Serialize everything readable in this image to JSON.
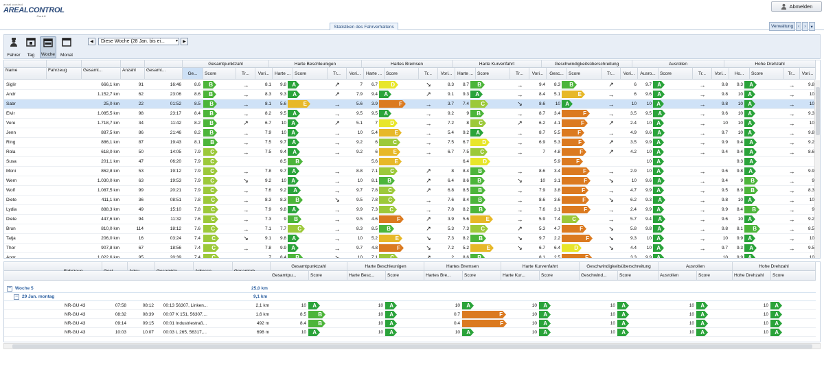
{
  "brand": {
    "name": "AREALCONTROL",
    "small_top": "areal control",
    "small_bottom": "GmbH"
  },
  "header": {
    "logout_label": "Abmelden",
    "stats_tab": "Statistiken des Fahrverhaltens",
    "admin_label": "Verwaltung"
  },
  "toolbar": {
    "buttons": [
      "Fahrer",
      "Tag",
      "Woche",
      "Monat"
    ],
    "period": "Diese Woche (28 Jan. bis ei..."
  },
  "groups": [
    "Gesamtpunktzahl",
    "Harte Beschleunigen",
    "Hartes Bremsen",
    "Harte Kurvenfahrt",
    "Geschwindigkeitsüberschreitung",
    "Ausrollen",
    "Hohe Drehzahl"
  ],
  "fixed_cols": [
    "Name",
    "Fahrzeug",
    "Gesamt...",
    "Anzahl",
    "Gesamt..."
  ],
  "sub_cols": {
    "g0": [
      "Ge...",
      "Score"
    ],
    "g1": [
      "Tr...",
      "Vori...",
      "Harte ...",
      "Score"
    ],
    "g2": [
      "Tr...",
      "Vori...",
      "Harte ...",
      "Score"
    ],
    "g3": [
      "Tr...",
      "Vori...",
      "Harte ...",
      "Score"
    ],
    "g4": [
      "Tr...",
      "Vori...",
      "Gesc...",
      "Score"
    ],
    "g5": [
      "Tr...",
      "Vori...",
      "Ausro...",
      "Score"
    ],
    "g6": [
      "Tr...",
      "Vori...",
      "Ho...",
      "Score"
    ],
    "tail": [
      "Tr...",
      "Vori..."
    ]
  },
  "colors": {
    "A": "#2aa33a",
    "B": "#4cb53a",
    "C": "#9cc93a",
    "D": "#e8e62a",
    "E": "#e7b828",
    "F": "#db7a20"
  },
  "rows": [
    {
      "name": "Siglir",
      "km": "666,1 km",
      "n": "91",
      "t": "16:46",
      "v": [
        [
          "8.6",
          "B"
        ],
        [
          "→",
          "8.1",
          "9.8",
          "A"
        ],
        [
          "↗",
          "7",
          "6.7",
          "D"
        ],
        [
          "↘",
          "8.3",
          "8.7",
          "B"
        ],
        [
          "→",
          "9.4",
          "8.3",
          "B"
        ],
        [
          "↗",
          "6",
          "9.7",
          "A"
        ],
        [
          "→",
          "9.8",
          "9.3",
          "A"
        ],
        [
          "→",
          "9.8"
        ]
      ]
    },
    {
      "name": "Andr",
      "km": "1.152,7 km",
      "n": "62",
      "t": "23:06",
      "v": [
        [
          "8.6",
          "B"
        ],
        [
          "→",
          "8.3",
          "9.3",
          "A"
        ],
        [
          "↗",
          "7.9",
          "9.4",
          "A"
        ],
        [
          "↗",
          "9.1",
          "9.3",
          "A"
        ],
        [
          "→",
          "8.4",
          "5.1",
          "E"
        ],
        [
          "→",
          "6",
          "9.6",
          "A"
        ],
        [
          "→",
          "9.8",
          "10",
          "A"
        ],
        [
          "→",
          "10"
        ]
      ]
    },
    {
      "name": "Sabr",
      "km": "25,0 km",
      "n": "22",
      "t": "01:52",
      "sel": true,
      "v": [
        [
          "8.5",
          "B"
        ],
        [
          "→",
          "8.1",
          "5.6",
          "E"
        ],
        [
          "→",
          "5.6",
          "3.9",
          "F"
        ],
        [
          "→",
          "3.7",
          "7.4",
          "C"
        ],
        [
          "↘",
          "8.6",
          "10",
          "A"
        ],
        [
          "→",
          "10",
          "10",
          "A"
        ],
        [
          "→",
          "9.8",
          "10",
          "A"
        ],
        [
          "→",
          "10"
        ]
      ]
    },
    {
      "name": "Elvir",
      "km": "1.085,5 km",
      "n": "98",
      "t": "23:17",
      "v": [
        [
          "8.4",
          "B"
        ],
        [
          "→",
          "8.2",
          "9.5",
          "A"
        ],
        [
          "→",
          "9.5",
          "9.5",
          "A"
        ],
        [
          "→",
          "9.2",
          "9",
          "B"
        ],
        [
          "→",
          "8.7",
          "3.4",
          "F"
        ],
        [
          "→",
          "3.5",
          "9.5",
          "A"
        ],
        [
          "→",
          "9.6",
          "10",
          "A"
        ],
        [
          "→",
          "9.3"
        ]
      ]
    },
    {
      "name": "Vere",
      "km": "1.718,7 km",
      "n": "34",
      "t": "11:42",
      "v": [
        [
          "8.2",
          "B"
        ],
        [
          "↗",
          "6.7",
          "10",
          "A"
        ],
        [
          "↗",
          "5.1",
          "7",
          "D"
        ],
        [
          "→",
          "7.2",
          "8",
          "C"
        ],
        [
          "↗",
          "6.2",
          "4.1",
          "F"
        ],
        [
          "↗",
          "2.4",
          "10",
          "A"
        ],
        [
          "→",
          "10",
          "10",
          "A"
        ],
        [
          "→",
          "10"
        ]
      ]
    },
    {
      "name": "Jenn",
      "km": "887,5 km",
      "n": "86",
      "t": "21:46",
      "v": [
        [
          "8.2",
          "B"
        ],
        [
          "→",
          "7.9",
          "10",
          "A"
        ],
        [
          "→",
          "10",
          "5.4",
          "E"
        ],
        [
          "→",
          "5.4",
          "9.2",
          "A"
        ],
        [
          "→",
          "8.7",
          "5.5",
          "F"
        ],
        [
          "→",
          "4.9",
          "9.6",
          "A"
        ],
        [
          "→",
          "9.7",
          "10",
          "A"
        ],
        [
          "→",
          "9.8"
        ]
      ]
    },
    {
      "name": "Ring",
      "km": "886,1 km",
      "n": "87",
      "t": "19:43",
      "v": [
        [
          "8.1",
          "B"
        ],
        [
          "→",
          "7.5",
          "9.7",
          "A"
        ],
        [
          "→",
          "9.2",
          "6",
          "C"
        ],
        [
          "→",
          "7.5",
          "6.7",
          "D"
        ],
        [
          "→",
          "6.9",
          "5.3",
          "F"
        ],
        [
          "↗",
          "3.5",
          "9.9",
          "A"
        ],
        [
          "→",
          "9.9",
          "9.4",
          "A"
        ],
        [
          "→",
          "9.2"
        ]
      ]
    },
    {
      "name": "Rola",
      "km": "618,0 km",
      "n": "50",
      "t": "14:05",
      "v": [
        [
          "7.9",
          "C"
        ],
        [
          "→",
          "7.5",
          "9.4",
          "A"
        ],
        [
          "→",
          "9.2",
          "6",
          "E"
        ],
        [
          "→",
          "6.7",
          "7.5",
          "C"
        ],
        [
          "→",
          "7",
          "4.8",
          "F"
        ],
        [
          "↗",
          "4.2",
          "10",
          "A"
        ],
        [
          "→",
          "9.4",
          "9.4",
          "A"
        ],
        [
          "→",
          "8.6"
        ]
      ]
    },
    {
      "name": "Susa",
      "km": "201,1 km",
      "n": "47",
      "t": "06:20",
      "v": [
        [
          "7.9",
          "C"
        ],
        [
          "",
          "",
          "8.5",
          "B"
        ],
        [
          "",
          "",
          "5.6",
          "E"
        ],
        [
          "",
          "",
          "6.4",
          "D"
        ],
        [
          "",
          "",
          "5.9",
          "F"
        ],
        [
          "",
          "",
          "10",
          "A"
        ],
        [
          "",
          "",
          "9.3",
          "A"
        ],
        [
          "",
          ""
        ]
      ]
    },
    {
      "name": "Moni",
      "km": "862,8 km",
      "n": "53",
      "t": "19:12",
      "v": [
        [
          "7.9",
          "C"
        ],
        [
          "→",
          "7.8",
          "9.7",
          "A"
        ],
        [
          "→",
          "8.8",
          "7.1",
          "C"
        ],
        [
          "↗",
          "8",
          "8.4",
          "B"
        ],
        [
          "→",
          "8.6",
          "3.4",
          "F"
        ],
        [
          "→",
          "2.9",
          "10",
          "A"
        ],
        [
          "→",
          "9.6",
          "9.8",
          "A"
        ],
        [
          "→",
          "9.9"
        ]
      ]
    },
    {
      "name": "Wern",
      "km": "1.030,0 km",
      "n": "63",
      "t": "19:53",
      "v": [
        [
          "7.9",
          "C"
        ],
        [
          "↘",
          "9.2",
          "10",
          "A"
        ],
        [
          "→",
          "10",
          "8.1",
          "B"
        ],
        [
          "↗",
          "6.4",
          "8.6",
          "B"
        ],
        [
          "↘",
          "10",
          "3.1",
          "F"
        ],
        [
          "↘",
          "10",
          "9.6",
          "A"
        ],
        [
          "→",
          "9.4",
          "9",
          "B"
        ],
        [
          "→",
          "9"
        ]
      ]
    },
    {
      "name": "Wolf",
      "km": "1.087,5 km",
      "n": "99",
      "t": "20:21",
      "v": [
        [
          "7.9",
          "C"
        ],
        [
          "→",
          "7.6",
          "9.2",
          "A"
        ],
        [
          "→",
          "9.7",
          "7.8",
          "C"
        ],
        [
          "↗",
          "6.8",
          "8.5",
          "B"
        ],
        [
          "→",
          "7.9",
          "3.8",
          "F"
        ],
        [
          "→",
          "4.7",
          "9.9",
          "A"
        ],
        [
          "→",
          "9.5",
          "8.9",
          "B"
        ],
        [
          "→",
          "8.3"
        ]
      ]
    },
    {
      "name": "Diete",
      "km": "411,1 km",
      "n": "36",
      "t": "08:51",
      "v": [
        [
          "7.8",
          "C"
        ],
        [
          "→",
          "8.3",
          "8.3",
          "B"
        ],
        [
          "↘",
          "9.5",
          "7.8",
          "C"
        ],
        [
          "→",
          "7.6",
          "8.4",
          "B"
        ],
        [
          "→",
          "8.6",
          "3.6",
          "F"
        ],
        [
          "↘",
          "6.2",
          "9.3",
          "A"
        ],
        [
          "→",
          "9.8",
          "10",
          "A"
        ],
        [
          "→",
          "10"
        ]
      ]
    },
    {
      "name": "Lydia",
      "km": "888,3 km",
      "n": "49",
      "t": "15:10",
      "v": [
        [
          "7.8",
          "C"
        ],
        [
          "→",
          "7.9",
          "9.8",
          "A"
        ],
        [
          "→",
          "9.9",
          "7.3",
          "C"
        ],
        [
          "→",
          "7.8",
          "8.2",
          "B"
        ],
        [
          "→",
          "7.6",
          "3.1",
          "F"
        ],
        [
          "→",
          "2.4",
          "9.9",
          "A"
        ],
        [
          "→",
          "9.9",
          "8.4",
          "B"
        ],
        [
          "→",
          "9"
        ]
      ]
    },
    {
      "name": "Diete",
      "km": "447,6 km",
      "n": "94",
      "t": "11:32",
      "v": [
        [
          "7.6",
          "C"
        ],
        [
          "→",
          "7.3",
          "9",
          "B"
        ],
        [
          "→",
          "9.5",
          "4.6",
          "F"
        ],
        [
          "↗",
          "3.9",
          "5.6",
          "E"
        ],
        [
          "→",
          "5.9",
          "7.4",
          "C"
        ],
        [
          "→",
          "5.7",
          "9.4",
          "A"
        ],
        [
          "→",
          "9.6",
          "10",
          "A"
        ],
        [
          "→",
          "9.2"
        ]
      ]
    },
    {
      "name": "Brun",
      "km": "810,0 km",
      "n": "114",
      "t": "18:12",
      "v": [
        [
          "7.6",
          "C"
        ],
        [
          "→",
          "7.1",
          "7.7",
          "C"
        ],
        [
          "→",
          "8.3",
          "8.5",
          "B"
        ],
        [
          "↗",
          "5.3",
          "7.3",
          "C"
        ],
        [
          "↗",
          "5.3",
          "4.7",
          "F"
        ],
        [
          "↘",
          "5.8",
          "9.8",
          "A"
        ],
        [
          "→",
          "9.8",
          "8.1",
          "B"
        ],
        [
          "→",
          "8.5"
        ]
      ]
    },
    {
      "name": "Tatja",
      "km": "206,0 km",
      "n": "16",
      "t": "03:24",
      "v": [
        [
          "7.4",
          "C"
        ],
        [
          "↘",
          "9.1",
          "9.8",
          "A"
        ],
        [
          "→",
          "10",
          "5.2",
          "E"
        ],
        [
          "↘",
          "7.3",
          "8.2",
          "B"
        ],
        [
          "↘",
          "9.7",
          "2.2",
          "F"
        ],
        [
          "↘",
          "9.3",
          "10",
          "A"
        ],
        [
          "→",
          "10",
          "9.9",
          "A"
        ],
        [
          "→",
          "10"
        ]
      ]
    },
    {
      "name": "Thor",
      "km": "907,8 km",
      "n": "67",
      "t": "18:56",
      "v": [
        [
          "7.4",
          "C"
        ],
        [
          "→",
          "7.8",
          "9.9",
          "A"
        ],
        [
          "→",
          "9.7",
          "4.8",
          "F"
        ],
        [
          "↘",
          "7.2",
          "5.2",
          "E"
        ],
        [
          "↘",
          "6.7",
          "6.4",
          "D"
        ],
        [
          "↘",
          "4.4",
          "10",
          "A"
        ],
        [
          "→",
          "9.7",
          "9.3",
          "A"
        ],
        [
          "→",
          "9.5"
        ]
      ]
    },
    {
      "name": "Angr",
      "km": "1.022,6 km",
      "n": "95",
      "t": "20:39",
      "v": [
        [
          "7.4",
          "C"
        ],
        [
          "→",
          "7",
          "8.4",
          "B"
        ],
        [
          "↘",
          "10",
          "7.1",
          "C"
        ],
        [
          "↗",
          "2",
          "8.6",
          "B"
        ],
        [
          "→",
          "8.1",
          "2.5",
          "F"
        ],
        [
          "→",
          "3.3",
          "9.9",
          "A"
        ],
        [
          "→",
          "10",
          "9.9",
          "A"
        ],
        [
          "→",
          "10"
        ]
      ]
    }
  ],
  "lower": {
    "head1": [
      "Fahrzeug",
      "Gest...",
      "Anku...",
      "Gesamtda...",
      "Adresse",
      "Gesamtab..."
    ],
    "head2": [
      "Gesamtpu...",
      "Score",
      "Harte Besc...",
      "Score",
      "Hartes Bre...",
      "Score",
      "Harte Kur...",
      "Score",
      "Geschwind...",
      "Score",
      "Ausrollen",
      "Score",
      "Hohe Drehzahl",
      "Score"
    ],
    "week_label": "Woche 5",
    "week_km": "25,0 km",
    "day_label": "29 Jan. montag",
    "day_km": "9,1 km",
    "trips": [
      {
        "car": "NR-GU 43",
        "start": "07:58",
        "end": "08:12",
        "dur": "00:13",
        "addr": "56307, Linken...",
        "dist": "2,1 km",
        "s": [
          [
            "10",
            "A"
          ],
          [
            "10",
            "A"
          ],
          [
            "10",
            "A"
          ],
          [
            "10",
            "A"
          ],
          [
            "10",
            "A"
          ],
          [
            "10",
            "A"
          ],
          [
            "10",
            "A"
          ]
        ]
      },
      {
        "car": "NR-GU 43",
        "start": "08:32",
        "end": "08:39",
        "dur": "00:07",
        "addr": "K 151, 56307,...",
        "dist": "1,6 km",
        "s": [
          [
            "8.5",
            "B"
          ],
          [
            "10",
            "A"
          ],
          [
            "0.7",
            "F"
          ],
          [
            "10",
            "A"
          ],
          [
            "10",
            "A"
          ],
          [
            "10",
            "A"
          ],
          [
            "10",
            "A"
          ]
        ]
      },
      {
        "car": "NR-GU 43",
        "start": "09:14",
        "end": "09:15",
        "dur": "00:01",
        "addr": "Industriestraß...",
        "dist": "492 m",
        "s": [
          [
            "8.4",
            "B"
          ],
          [
            "10",
            "A"
          ],
          [
            "0.4",
            "F"
          ],
          [
            "10",
            "A"
          ],
          [
            "10",
            "A"
          ],
          [
            "10",
            "A"
          ],
          [
            "10",
            "A"
          ]
        ]
      },
      {
        "car": "NR-GU 43",
        "start": "10:03",
        "end": "10:07",
        "dur": "00:03",
        "addr": "L 265, 56317,...",
        "dist": "698 m",
        "s": [
          [
            "10",
            "A"
          ],
          [
            "10",
            "A"
          ],
          [
            "10",
            "A"
          ],
          [
            "10",
            "A"
          ],
          [
            "10",
            "A"
          ],
          [
            "10",
            "A"
          ],
          [
            "10",
            "A"
          ]
        ]
      }
    ]
  }
}
